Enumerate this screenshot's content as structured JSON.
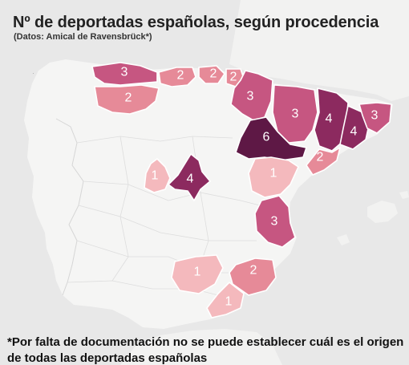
{
  "title": "Nº de deportadas españolas, según procedencia",
  "subtitle": "(Datos: Amical de Ravensbrück*)",
  "note": "*Por falta de documentación no se puede establecer cuál es el origen de todas las deportadas españolas",
  "colors": {
    "sea": "#e8e8e8",
    "land": "#f5f5f4",
    "c1": "#f4b9bd",
    "c2": "#e68a98",
    "c3": "#c65681",
    "c4": "#8c2a5f",
    "c6": "#5e1845"
  },
  "provinces": [
    {
      "name": "Asturias",
      "value": "3"
    },
    {
      "name": "León",
      "value": "2"
    },
    {
      "name": "Cantabria",
      "value": "2"
    },
    {
      "name": "Vizcaya",
      "value": "2"
    },
    {
      "name": "Guipúzcoa",
      "value": "2"
    },
    {
      "name": "Navarra",
      "value": "3"
    },
    {
      "name": "Huesca",
      "value": "3"
    },
    {
      "name": "Lleida",
      "value": "4"
    },
    {
      "name": "Barcelona",
      "value": "4"
    },
    {
      "name": "Girona",
      "value": "3"
    },
    {
      "name": "Zaragoza",
      "value": "6"
    },
    {
      "name": "Tarragona",
      "value": "2"
    },
    {
      "name": "Madrid",
      "value": "4"
    },
    {
      "name": "Ávila",
      "value": "1"
    },
    {
      "name": "Teruel",
      "value": "1"
    },
    {
      "name": "Valencia",
      "value": "3"
    },
    {
      "name": "Jaén",
      "value": "1"
    },
    {
      "name": "Murcia",
      "value": "2"
    },
    {
      "name": "Almería",
      "value": "1"
    }
  ]
}
